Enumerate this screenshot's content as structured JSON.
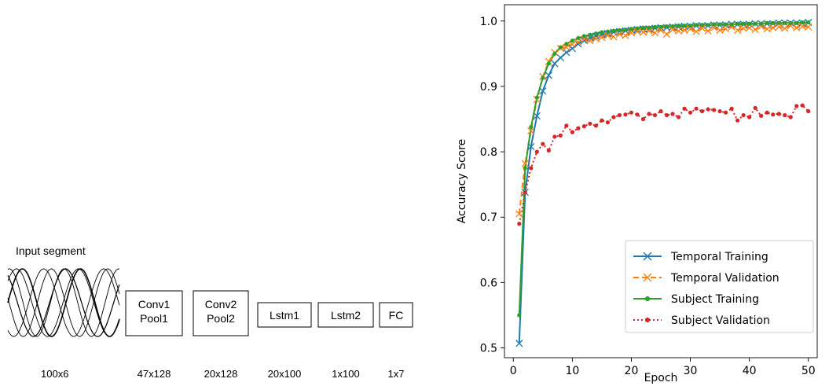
{
  "architecture": {
    "input_label": "Input segment",
    "input_dim": "100x6",
    "layers": [
      {
        "line1": "Conv1",
        "line2": "Pool1",
        "dim": "47x128"
      },
      {
        "line1": "Conv2",
        "line2": "Pool2",
        "dim": "20x128"
      },
      {
        "line1": "Lstm1",
        "line2": "",
        "dim": "20x100"
      },
      {
        "line1": "Lstm2",
        "line2": "",
        "dim": "1x100"
      },
      {
        "line1": "FC",
        "line2": "",
        "dim": "1x7"
      }
    ]
  },
  "chart_data": {
    "type": "line",
    "xlabel": "Epoch",
    "ylabel": "Accuracy Score",
    "xlim": [
      -1.5,
      51.5
    ],
    "ylim": [
      0.485,
      1.025
    ],
    "xticks": [
      0,
      10,
      20,
      30,
      40,
      50
    ],
    "yticks": [
      0.5,
      0.6,
      0.7,
      0.8,
      0.9,
      1.0
    ],
    "legend_position": "lower-right",
    "x": [
      1,
      2,
      3,
      4,
      5,
      6,
      7,
      8,
      9,
      10,
      11,
      12,
      13,
      14,
      15,
      16,
      17,
      18,
      19,
      20,
      21,
      22,
      23,
      24,
      25,
      26,
      27,
      28,
      29,
      30,
      31,
      32,
      33,
      34,
      35,
      36,
      37,
      38,
      39,
      40,
      41,
      42,
      43,
      44,
      45,
      46,
      47,
      48,
      49,
      50
    ],
    "series": [
      {
        "name": "Temporal Training",
        "color": "#1f77b4",
        "style": "solid",
        "marker": "x",
        "values": [
          0.507,
          0.738,
          0.808,
          0.855,
          0.893,
          0.917,
          0.935,
          0.944,
          0.952,
          0.958,
          0.965,
          0.97,
          0.974,
          0.977,
          0.979,
          0.981,
          0.983,
          0.984,
          0.985,
          0.986,
          0.987,
          0.988,
          0.988,
          0.989,
          0.99,
          0.99,
          0.991,
          0.991,
          0.992,
          0.992,
          0.993,
          0.993,
          0.993,
          0.994,
          0.994,
          0.994,
          0.995,
          0.995,
          0.995,
          0.995,
          0.996,
          0.996,
          0.996,
          0.996,
          0.997,
          0.997,
          0.997,
          0.997,
          0.997,
          0.998
        ]
      },
      {
        "name": "Temporal Validation",
        "color": "#ff7f0e",
        "style": "dashed",
        "marker": "x",
        "values": [
          0.705,
          0.782,
          0.832,
          0.88,
          0.915,
          0.938,
          0.952,
          0.958,
          0.96,
          0.964,
          0.968,
          0.972,
          0.97,
          0.973,
          0.975,
          0.978,
          0.976,
          0.98,
          0.978,
          0.982,
          0.984,
          0.983,
          0.985,
          0.982,
          0.986,
          0.98,
          0.987,
          0.985,
          0.986,
          0.988,
          0.984,
          0.989,
          0.985,
          0.99,
          0.986,
          0.988,
          0.991,
          0.986,
          0.989,
          0.99,
          0.987,
          0.992,
          0.988,
          0.99,
          0.991,
          0.989,
          0.993,
          0.99,
          0.992,
          0.991
        ]
      },
      {
        "name": "Subject Training",
        "color": "#2ca02c",
        "style": "solid",
        "marker": "o",
        "values": [
          0.55,
          0.775,
          0.838,
          0.883,
          0.913,
          0.935,
          0.95,
          0.96,
          0.965,
          0.97,
          0.974,
          0.977,
          0.979,
          0.981,
          0.983,
          0.984,
          0.985,
          0.986,
          0.987,
          0.988,
          0.989,
          0.99,
          0.99,
          0.991,
          0.991,
          0.992,
          0.992,
          0.993,
          0.993,
          0.993,
          0.994,
          0.994,
          0.994,
          0.995,
          0.995,
          0.995,
          0.995,
          0.996,
          0.996,
          0.996,
          0.996,
          0.996,
          0.997,
          0.997,
          0.997,
          0.997,
          0.997,
          0.997,
          0.998,
          0.998
        ]
      },
      {
        "name": "Subject Validation",
        "color": "#d62728",
        "style": "dotted",
        "marker": "o",
        "values": [
          0.69,
          0.738,
          0.775,
          0.8,
          0.812,
          0.802,
          0.823,
          0.825,
          0.84,
          0.83,
          0.836,
          0.839,
          0.843,
          0.84,
          0.848,
          0.845,
          0.853,
          0.856,
          0.857,
          0.86,
          0.857,
          0.85,
          0.858,
          0.856,
          0.862,
          0.856,
          0.858,
          0.853,
          0.866,
          0.86,
          0.866,
          0.862,
          0.865,
          0.864,
          0.862,
          0.86,
          0.866,
          0.848,
          0.856,
          0.853,
          0.867,
          0.855,
          0.86,
          0.857,
          0.858,
          0.856,
          0.853,
          0.87,
          0.871,
          0.862
        ]
      }
    ]
  }
}
